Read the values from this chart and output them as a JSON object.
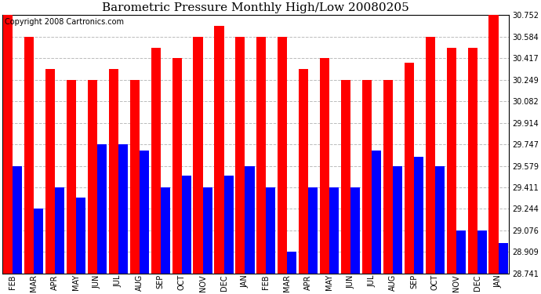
{
  "title": "Barometric Pressure Monthly High/Low 20080205",
  "copyright": "Copyright 2008 Cartronics.com",
  "months": [
    "FEB",
    "MAR",
    "APR",
    "MAY",
    "JUN",
    "JUL",
    "AUG",
    "SEP",
    "OCT",
    "NOV",
    "DEC",
    "JAN",
    "FEB",
    "MAR",
    "APR",
    "MAY",
    "JUN",
    "JUL",
    "AUG",
    "SEP",
    "OCT",
    "NOV",
    "DEC",
    "JAN"
  ],
  "highs": [
    30.752,
    30.584,
    30.332,
    30.249,
    30.249,
    30.332,
    30.249,
    30.5,
    30.417,
    30.584,
    30.667,
    30.584,
    30.584,
    30.584,
    30.332,
    30.417,
    30.249,
    30.249,
    30.249,
    30.38,
    30.584,
    30.5,
    30.5,
    30.752
  ],
  "lows": [
    29.579,
    29.244,
    29.411,
    29.332,
    29.747,
    29.747,
    29.7,
    29.411,
    29.5,
    29.411,
    29.5,
    29.579,
    29.411,
    28.909,
    29.411,
    29.411,
    29.411,
    29.7,
    29.579,
    29.65,
    29.579,
    29.076,
    29.076,
    28.975
  ],
  "y_ticks": [
    28.741,
    28.909,
    29.076,
    29.244,
    29.411,
    29.579,
    29.747,
    29.914,
    30.082,
    30.249,
    30.417,
    30.584,
    30.752
  ],
  "ymin": 28.741,
  "ymax": 30.752,
  "high_color": "#FF0000",
  "low_color": "#0000FF",
  "background_color": "#FFFFFF",
  "grid_color": "#BBBBBB",
  "title_fontsize": 11,
  "tick_fontsize": 7,
  "copyright_fontsize": 7
}
